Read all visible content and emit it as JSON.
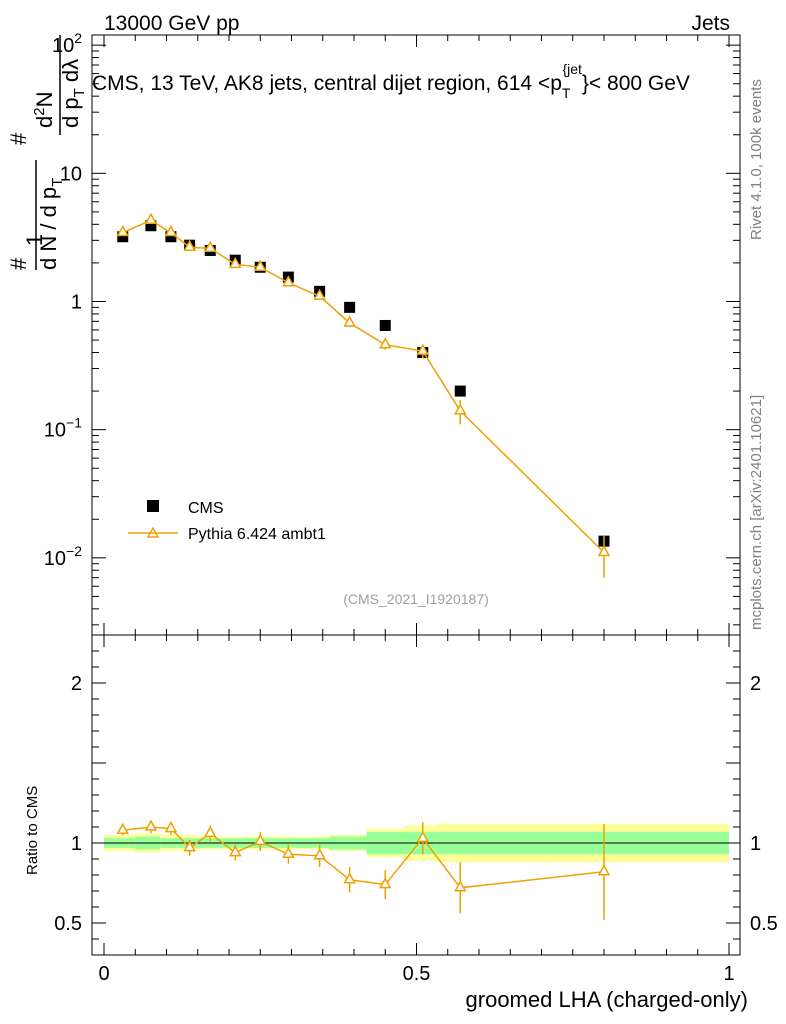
{
  "header": {
    "left": "13000 GeV pp",
    "right": "Jets"
  },
  "side_labels": {
    "rivet": "Rivet 4.1.0,  100k events",
    "mcplots": "mcplots.cern.ch [arXiv:2401.10621]"
  },
  "chart_data": {
    "type": "line",
    "title": "CMS, 13 TeV, AK8 jets, central dijet region, 614 <p_T^{jet}< 800 GeV",
    "title_parts": {
      "main": "CMS, 13 TeV, AK8 jets, central dijet region, 614 <p",
      "sub": "T",
      "sup": "{jet",
      "end": "}< 800 GeV"
    },
    "analysis_id": "(CMS_2021_I1920187)",
    "xlabel": "groomed LHA (charged-only)",
    "ylabel": "1/(dN/dp_T) d²N/(dp_T dλ)",
    "ylabel_parts": {
      "hash": "#",
      "one": "1",
      "den": "d N / d p",
      "den_sub": "T",
      "num": "d",
      "num_sup": "2",
      "num_end": "N",
      "den2": "d p",
      "den2_sub": "T",
      "den2_end": " dλ"
    },
    "ratio_ylabel": "Ratio to CMS",
    "xlim": [
      0,
      1
    ],
    "ylim_log": [
      0.0025,
      120
    ],
    "ratio_ylim": [
      0.3,
      2.3
    ],
    "x_ticks": [
      {
        "value": 0,
        "label": "0"
      },
      {
        "value": 0.5,
        "label": "0.5"
      },
      {
        "value": 1,
        "label": "1"
      }
    ],
    "y_ticks": [
      {
        "value": 100,
        "label": "10^2",
        "base": "10",
        "exp": "2"
      },
      {
        "value": 10,
        "label": "10"
      },
      {
        "value": 1,
        "label": "1"
      },
      {
        "value": 0.1,
        "label": "10^-1",
        "base": "10",
        "exp": "−1"
      },
      {
        "value": 0.01,
        "label": "10^-2",
        "base": "10",
        "exp": "−2"
      }
    ],
    "ratio_ticks": [
      {
        "value": 2,
        "label": "2"
      },
      {
        "value": 1,
        "label": "1"
      },
      {
        "value": 0.5,
        "label": "0.5"
      }
    ],
    "legend": [
      {
        "name": "CMS",
        "marker": "square",
        "color": "#000000"
      },
      {
        "name": "Pythia 6.424 ambt1",
        "marker": "triangle",
        "color": "#f0a000"
      }
    ],
    "bins": [
      [
        0.0,
        0.05
      ],
      [
        0.05,
        0.09
      ],
      [
        0.09,
        0.12
      ],
      [
        0.12,
        0.15
      ],
      [
        0.15,
        0.19
      ],
      [
        0.19,
        0.23
      ],
      [
        0.23,
        0.27
      ],
      [
        0.27,
        0.32
      ],
      [
        0.32,
        0.36
      ],
      [
        0.36,
        0.42
      ],
      [
        0.42,
        0.48
      ],
      [
        0.48,
        0.53
      ],
      [
        0.53,
        0.6
      ],
      [
        0.6,
        1.0
      ]
    ],
    "series": [
      {
        "name": "CMS",
        "x": [
          0.03,
          0.075,
          0.107,
          0.137,
          0.17,
          0.21,
          0.25,
          0.295,
          0.345,
          0.393,
          0.45,
          0.51,
          0.57,
          0.8
        ],
        "y": [
          3.2,
          3.9,
          3.2,
          2.75,
          2.5,
          2.1,
          1.85,
          1.55,
          1.2,
          0.9,
          0.65,
          0.4,
          0.2,
          0.0135
        ],
        "syst_inner": [
          0.03,
          0.04,
          0.03,
          0.03,
          0.03,
          0.03,
          0.03,
          0.03,
          0.03,
          0.04,
          0.07,
          0.07,
          0.07,
          0.07
        ],
        "syst_outer": [
          0.05,
          0.06,
          0.05,
          0.05,
          0.04,
          0.04,
          0.04,
          0.04,
          0.04,
          0.05,
          0.09,
          0.11,
          0.12,
          0.12
        ]
      },
      {
        "name": "Pythia 6.424 ambt1",
        "x": [
          0.03,
          0.075,
          0.107,
          0.137,
          0.17,
          0.21,
          0.25,
          0.295,
          0.345,
          0.393,
          0.45,
          0.51,
          0.57,
          0.8
        ],
        "y": [
          3.45,
          4.3,
          3.45,
          2.65,
          2.6,
          1.95,
          1.85,
          1.4,
          1.1,
          0.68,
          0.46,
          0.41,
          0.14,
          0.011
        ],
        "yerr": [
          0.1,
          0.15,
          0.12,
          0.1,
          0.1,
          0.08,
          0.08,
          0.07,
          0.06,
          0.05,
          0.04,
          0.05,
          0.03,
          0.004
        ],
        "ratio": [
          1.08,
          1.1,
          1.09,
          0.97,
          1.06,
          0.94,
          1.01,
          0.93,
          0.92,
          0.77,
          0.74,
          1.03,
          0.72,
          0.82
        ],
        "ratio_err": [
          0.03,
          0.04,
          0.04,
          0.05,
          0.05,
          0.05,
          0.06,
          0.06,
          0.07,
          0.08,
          0.09,
          0.1,
          0.16,
          0.3
        ]
      }
    ]
  }
}
